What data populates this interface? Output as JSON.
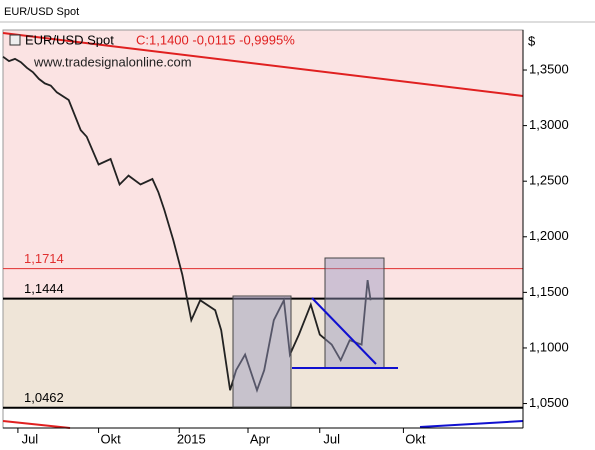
{
  "chart_data": {
    "type": "line",
    "title": "EUR/USD Spot",
    "quote": "C:1,1400 -0,0115 -0,9995%",
    "watermark": "www.tradesignalonline.com",
    "y_unit": "$",
    "xlim": [
      0,
      87
    ],
    "ylim": [
      1.028,
      1.386
    ],
    "yticks": [
      {
        "value": 1.35,
        "label": "1,3500"
      },
      {
        "value": 1.3,
        "label": "1,3000"
      },
      {
        "value": 1.25,
        "label": "1,2500"
      },
      {
        "value": 1.2,
        "label": "1,2000"
      },
      {
        "value": 1.15,
        "label": "1,1500"
      },
      {
        "value": 1.1,
        "label": "1,1000"
      },
      {
        "value": 1.05,
        "label": "1,0500"
      }
    ],
    "xticks": [
      {
        "value": 4.5,
        "label": "Jul"
      },
      {
        "value": 18,
        "label": "Okt"
      },
      {
        "value": 31.5,
        "label": "2015"
      },
      {
        "value": 43,
        "label": "Apr"
      },
      {
        "value": 55,
        "label": "Jul"
      },
      {
        "value": 69,
        "label": "Okt"
      }
    ],
    "levels": [
      {
        "value": 1.1714,
        "label": "1,1714",
        "color": "#e03030"
      },
      {
        "value": 1.1444,
        "label": "1,1444",
        "color": "#000000"
      },
      {
        "value": 1.0462,
        "label": "1,0462",
        "color": "#000000"
      }
    ],
    "series": [
      {
        "name": "EUR/USD Spot",
        "color": "#222222",
        "x": [
          0,
          1,
          2,
          3,
          4,
          5,
          6,
          7,
          8,
          9,
          11,
          13,
          14,
          16,
          18,
          19.5,
          21,
          23,
          25,
          26,
          27,
          28.5,
          30,
          31.5,
          33,
          35.5,
          36.5,
          38,
          39,
          40.5,
          42.5,
          43.7,
          45.3,
          47,
          48,
          49.5,
          51.5,
          53,
          55,
          56.5,
          58,
          60,
          61,
          61.5
        ],
        "values": [
          1.362,
          1.358,
          1.36,
          1.357,
          1.352,
          1.348,
          1.342,
          1.338,
          1.336,
          1.33,
          1.323,
          1.296,
          1.29,
          1.265,
          1.27,
          1.247,
          1.255,
          1.247,
          1.252,
          1.24,
          1.224,
          1.197,
          1.166,
          1.125,
          1.143,
          1.134,
          1.116,
          1.062,
          1.08,
          1.094,
          1.062,
          1.08,
          1.125,
          1.143,
          1.094,
          1.112,
          1.139,
          1.112,
          1.103,
          1.089,
          1.107,
          1.103,
          1.161,
          1.143
        ]
      }
    ]
  }
}
